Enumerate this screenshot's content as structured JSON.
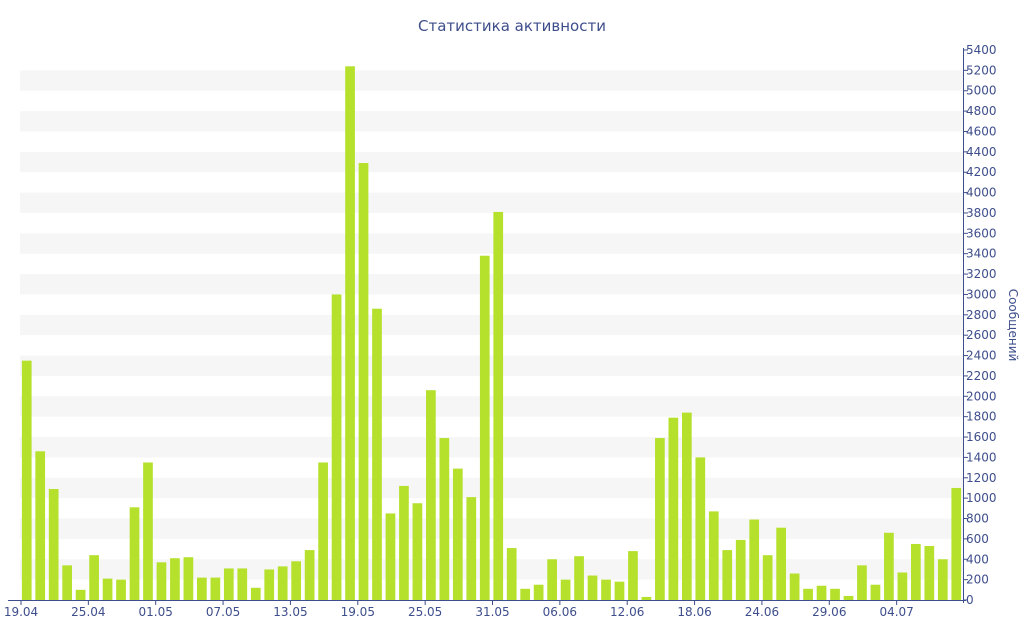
{
  "chart_data": {
    "type": "bar",
    "title": "Статистика активности",
    "ylabel": "Сообщений",
    "xlabel": "",
    "ylim": [
      0,
      5400
    ],
    "y_ticks": [
      0,
      200,
      400,
      600,
      800,
      1000,
      1200,
      1400,
      1600,
      1800,
      2000,
      2200,
      2400,
      2600,
      2800,
      3000,
      3200,
      3400,
      3600,
      3800,
      4000,
      4200,
      4400,
      4600,
      4800,
      5000,
      5200,
      5400
    ],
    "y_axis_side": "right",
    "grid": "alternating horizontal bands",
    "x_ticks": [
      {
        "label": "19.04",
        "index": 0
      },
      {
        "label": "25.04",
        "index": 5
      },
      {
        "label": "01.05",
        "index": 10
      },
      {
        "label": "07.05",
        "index": 15
      },
      {
        "label": "13.05",
        "index": 20
      },
      {
        "label": "19.05",
        "index": 25
      },
      {
        "label": "25.05",
        "index": 30
      },
      {
        "label": "31.05",
        "index": 35
      },
      {
        "label": "06.06",
        "index": 40
      },
      {
        "label": "12.06",
        "index": 45
      },
      {
        "label": "18.06",
        "index": 50
      },
      {
        "label": "24.06",
        "index": 55
      },
      {
        "label": "29.06",
        "index": 60
      },
      {
        "label": "04.07",
        "index": 65
      }
    ],
    "values": [
      2350,
      1460,
      1090,
      340,
      100,
      440,
      210,
      200,
      910,
      1350,
      370,
      410,
      420,
      220,
      220,
      310,
      310,
      120,
      300,
      330,
      380,
      490,
      1350,
      3000,
      5240,
      4290,
      2860,
      850,
      1120,
      950,
      2060,
      1590,
      1290,
      1010,
      3380,
      3810,
      510,
      110,
      150,
      400,
      200,
      430,
      240,
      200,
      180,
      480,
      30,
      1590,
      1790,
      1840,
      1400,
      870,
      490,
      590,
      790,
      440,
      710,
      260,
      110,
      140,
      110,
      40,
      340,
      150,
      660,
      270,
      550,
      530,
      400,
      1100
    ],
    "bar_color": "#b5e02c",
    "band_color": "#f6f6f6",
    "axis_color": "#3e4e8c"
  }
}
